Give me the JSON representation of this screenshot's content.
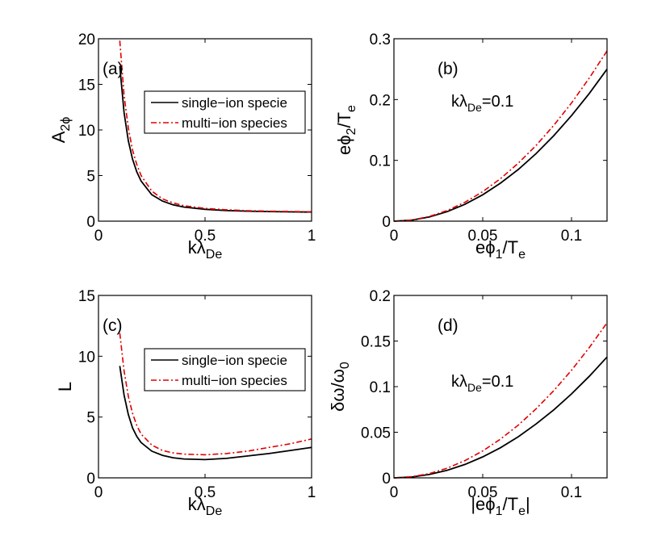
{
  "chart_data": [
    {
      "type": "line",
      "panel_label": "(a)",
      "ylabel": "A",
      "ylabel_sub": "2ϕ",
      "xlabel": "kλ",
      "xlabel_sub": "De",
      "xlim": [
        0,
        1
      ],
      "ylim": [
        0,
        20
      ],
      "xticks": [
        "0",
        "0.5",
        "1"
      ],
      "yticks": [
        "0",
        "5",
        "10",
        "15",
        "20"
      ],
      "xtick_values": [
        0,
        0.5,
        1
      ],
      "ytick_values": [
        0,
        5,
        10,
        15,
        20
      ],
      "legend": [
        "single−ion specie",
        "multi−ion species"
      ],
      "series": [
        {
          "name": "single−ion specie",
          "style": "solid",
          "x": [
            0.1,
            0.12,
            0.14,
            0.16,
            0.18,
            0.2,
            0.25,
            0.3,
            0.35,
            0.4,
            0.5,
            0.6,
            0.7,
            0.8,
            0.9,
            1.0
          ],
          "y": [
            17.0,
            11.9,
            8.8,
            6.8,
            5.4,
            4.4,
            2.9,
            2.2,
            1.8,
            1.55,
            1.3,
            1.17,
            1.1,
            1.05,
            1.02,
            1.0
          ]
        },
        {
          "name": "multi−ion species",
          "style": "dashdot",
          "x": [
            0.1,
            0.12,
            0.14,
            0.16,
            0.18,
            0.2,
            0.25,
            0.3,
            0.35,
            0.4,
            0.5,
            0.6,
            0.7,
            0.8,
            0.9,
            1.0
          ],
          "y": [
            19.8,
            13.8,
            10.2,
            7.8,
            6.2,
            5.0,
            3.3,
            2.45,
            2.0,
            1.7,
            1.4,
            1.25,
            1.15,
            1.1,
            1.06,
            1.03
          ]
        }
      ]
    },
    {
      "type": "line",
      "panel_label": "(b)",
      "ylabel": "eϕ",
      "ylabel_sub": "2",
      "ylabel_tail": "/T",
      "ylabel_tail_sub": "e",
      "xlabel": "eϕ",
      "xlabel_sub": "1",
      "xlabel_tail": "/T",
      "xlabel_tail_sub": "e",
      "annotation": "kλ",
      "annotation_sub": "De",
      "annotation_tail": "=0.1",
      "xlim": [
        0,
        0.12
      ],
      "ylim": [
        0,
        0.3
      ],
      "xticks": [
        "0",
        "0.05",
        "0.1"
      ],
      "yticks": [
        "0",
        "0.1",
        "0.2",
        "0.3"
      ],
      "xtick_values": [
        0,
        0.05,
        0.1
      ],
      "ytick_values": [
        0,
        0.1,
        0.2,
        0.3
      ],
      "series": [
        {
          "name": "single−ion specie",
          "style": "solid",
          "x": [
            0,
            0.01,
            0.02,
            0.03,
            0.04,
            0.05,
            0.06,
            0.07,
            0.08,
            0.09,
            0.1,
            0.11,
            0.12
          ],
          "y": [
            0,
            0.0017,
            0.0069,
            0.0156,
            0.0278,
            0.0434,
            0.0625,
            0.085,
            0.111,
            0.1406,
            0.1736,
            0.21,
            0.25
          ]
        },
        {
          "name": "multi−ion species",
          "style": "dashdot",
          "x": [
            0,
            0.01,
            0.02,
            0.03,
            0.04,
            0.05,
            0.06,
            0.07,
            0.08,
            0.09,
            0.1,
            0.11,
            0.12
          ],
          "y": [
            0,
            0.0019,
            0.0078,
            0.0175,
            0.0311,
            0.0486,
            0.07,
            0.0953,
            0.1244,
            0.1575,
            0.1944,
            0.2353,
            0.28
          ]
        }
      ]
    },
    {
      "type": "line",
      "panel_label": "(c)",
      "ylabel": "L",
      "xlabel": "kλ",
      "xlabel_sub": "De",
      "xlim": [
        0,
        1
      ],
      "ylim": [
        0,
        15
      ],
      "xticks": [
        "0",
        "0.5",
        "1"
      ],
      "yticks": [
        "0",
        "5",
        "10",
        "15"
      ],
      "xtick_values": [
        0,
        0.5,
        1
      ],
      "ytick_values": [
        0,
        5,
        10,
        15
      ],
      "legend": [
        "single−ion specie",
        "multi−ion species"
      ],
      "series": [
        {
          "name": "single−ion specie",
          "style": "solid",
          "x": [
            0.1,
            0.12,
            0.14,
            0.16,
            0.18,
            0.2,
            0.25,
            0.3,
            0.35,
            0.4,
            0.5,
            0.6,
            0.7,
            0.8,
            0.9,
            1.0
          ],
          "y": [
            9.2,
            6.8,
            5.2,
            4.1,
            3.4,
            2.9,
            2.2,
            1.85,
            1.65,
            1.55,
            1.5,
            1.6,
            1.8,
            2.0,
            2.25,
            2.5
          ]
        },
        {
          "name": "multi−ion species",
          "style": "dashdot",
          "x": [
            0.1,
            0.12,
            0.14,
            0.16,
            0.18,
            0.2,
            0.25,
            0.3,
            0.35,
            0.4,
            0.5,
            0.6,
            0.7,
            0.8,
            0.9,
            1.0
          ],
          "y": [
            11.9,
            8.8,
            6.7,
            5.3,
            4.3,
            3.6,
            2.7,
            2.25,
            2.05,
            1.95,
            1.9,
            2.0,
            2.2,
            2.5,
            2.8,
            3.2
          ]
        }
      ]
    },
    {
      "type": "line",
      "panel_label": "(d)",
      "ylabel": "δω/ω",
      "ylabel_sub": "0",
      "xlabel": "|eϕ",
      "xlabel_sub": "1",
      "xlabel_tail": "/T",
      "xlabel_tail_sub": "e",
      "xlabel_end": "|",
      "annotation": "kλ",
      "annotation_sub": "De",
      "annotation_tail": "=0.1",
      "xlim": [
        0,
        0.12
      ],
      "ylim": [
        0,
        0.2
      ],
      "xticks": [
        "0",
        "0.05",
        "0.1"
      ],
      "yticks": [
        "0",
        "0.05",
        "0.1",
        "0.15",
        "0.2"
      ],
      "xtick_values": [
        0,
        0.05,
        0.1
      ],
      "ytick_values": [
        0,
        0.05,
        0.1,
        0.15,
        0.2
      ],
      "series": [
        {
          "name": "single−ion specie",
          "style": "solid",
          "x": [
            0,
            0.01,
            0.02,
            0.03,
            0.04,
            0.05,
            0.06,
            0.07,
            0.08,
            0.09,
            0.1,
            0.11,
            0.12
          ],
          "y": [
            0,
            0.0009,
            0.0037,
            0.0083,
            0.0147,
            0.023,
            0.033,
            0.045,
            0.059,
            0.0745,
            0.092,
            0.1113,
            0.1325
          ]
        },
        {
          "name": "multi−ion species",
          "style": "dashdot",
          "x": [
            0,
            0.01,
            0.02,
            0.03,
            0.04,
            0.05,
            0.06,
            0.07,
            0.08,
            0.09,
            0.1,
            0.11,
            0.12
          ],
          "y": [
            0,
            0.0012,
            0.0047,
            0.0106,
            0.0189,
            0.0295,
            0.0425,
            0.0578,
            0.0756,
            0.0956,
            0.118,
            0.1428,
            0.17
          ]
        }
      ]
    }
  ],
  "colors": {
    "single": "#000000",
    "multi": "#e00000",
    "axis": "#000000"
  }
}
